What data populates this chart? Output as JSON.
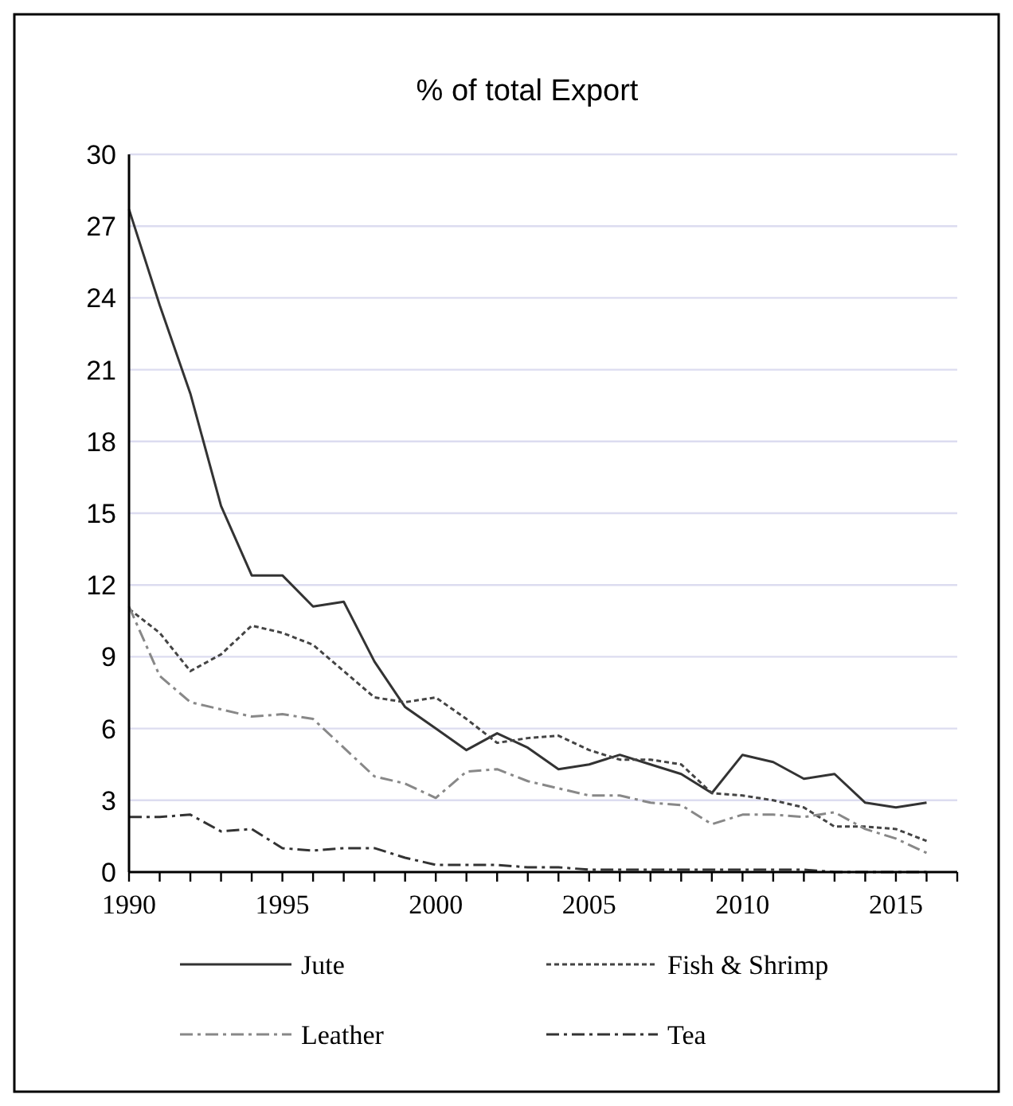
{
  "chart_data": {
    "type": "line",
    "title": "% of total Export",
    "x": [
      1990,
      1991,
      1992,
      1993,
      1994,
      1995,
      1996,
      1997,
      1998,
      1999,
      2000,
      2001,
      2002,
      2003,
      2004,
      2005,
      2006,
      2007,
      2008,
      2009,
      2010,
      2011,
      2012,
      2013,
      2014,
      2015,
      2016
    ],
    "series": [
      {
        "name": "Jute",
        "color": "#333333",
        "line_style": "solid",
        "values": [
          27.7,
          23.7,
          20,
          15.3,
          12.4,
          12.4,
          11.1,
          11.3,
          8.8,
          6.9,
          6.0,
          5.1,
          5.8,
          5.2,
          4.3,
          4.5,
          4.9,
          4.5,
          4.1,
          3.3,
          4.9,
          4.6,
          3.9,
          4.1,
          2.9,
          2.7,
          2.9
        ]
      },
      {
        "name": "Fish & Shrimp",
        "color": "#444444",
        "line_style": "dotted",
        "values": [
          11.0,
          10.0,
          8.4,
          9.1,
          10.3,
          10.0,
          9.5,
          8.4,
          7.3,
          7.1,
          7.3,
          6.4,
          5.4,
          5.6,
          5.7,
          5.1,
          4.7,
          4.7,
          4.5,
          3.3,
          3.2,
          3.0,
          2.7,
          1.9,
          1.9,
          1.8,
          1.3
        ]
      },
      {
        "name": "Leather",
        "color": "#888888",
        "line_style": "dashed",
        "values": [
          11.1,
          8.2,
          7.1,
          6.8,
          6.5,
          6.6,
          6.4,
          5.2,
          4.0,
          3.7,
          3.1,
          4.2,
          4.3,
          3.8,
          3.5,
          3.2,
          3.2,
          2.9,
          2.8,
          2.0,
          2.4,
          2.4,
          2.3,
          2.5,
          1.8,
          1.4,
          0.8
        ]
      },
      {
        "name": "Tea",
        "color": "#333333",
        "line_style": "dashed",
        "values": [
          2.3,
          2.3,
          2.4,
          1.7,
          1.8,
          1.0,
          0.9,
          1.0,
          1.0,
          0.6,
          0.3,
          0.3,
          0.3,
          0.2,
          0.2,
          0.1,
          0.1,
          0.1,
          0.1,
          0.1,
          0.1,
          0.1,
          0.1,
          0.0,
          0.0,
          0.0,
          0.0
        ]
      }
    ],
    "xlim": [
      1990,
      2017
    ],
    "xticks": [
      1990,
      {
        "value": 1991,
        "label": null
      },
      {
        "value": 1992,
        "label": null
      },
      {
        "value": 1993,
        "label": null
      },
      {
        "value": 1994,
        "label": null
      },
      1995,
      {
        "value": 1996,
        "label": null
      },
      {
        "value": 1997,
        "label": null
      },
      {
        "value": 1998,
        "label": null
      },
      {
        "value": 1999,
        "label": null
      },
      2000,
      {
        "value": 2001,
        "label": null
      },
      {
        "value": 2002,
        "label": null
      },
      {
        "value": 2003,
        "label": null
      },
      {
        "value": 2004,
        "label": null
      },
      2005,
      {
        "value": 2006,
        "label": null
      },
      {
        "value": 2007,
        "label": null
      },
      {
        "value": 2008,
        "label": null
      },
      {
        "value": 2009,
        "label": null
      },
      2010,
      {
        "value": 2011,
        "label": null
      },
      {
        "value": 2012,
        "label": null
      },
      {
        "value": 2013,
        "label": null
      },
      {
        "value": 2014,
        "label": null
      },
      2015,
      {
        "value": 2016,
        "label": null
      },
      {
        "value": 2017,
        "label": null
      }
    ],
    "ylim": [
      0,
      30
    ],
    "yticks": [
      0,
      3,
      6,
      9,
      12,
      15,
      18,
      21,
      24,
      27,
      30
    ],
    "grid": "y",
    "legend": "bottom",
    "marker": "none"
  }
}
